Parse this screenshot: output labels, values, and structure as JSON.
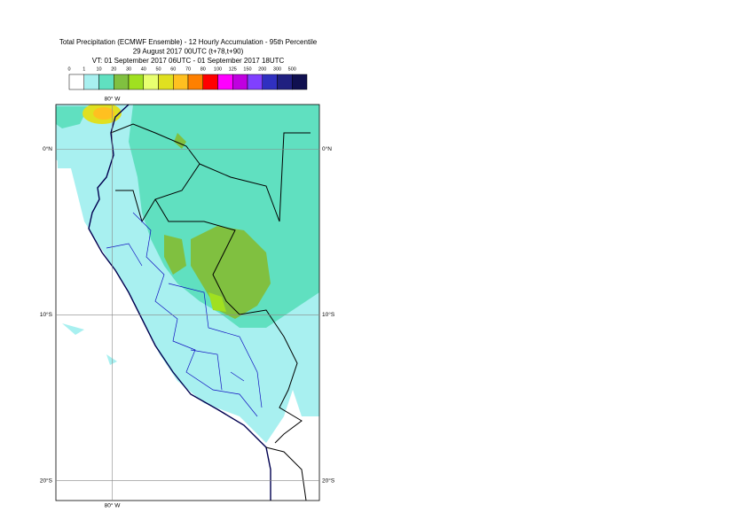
{
  "chart_data": {
    "type": "map",
    "title": "Total Precipitation (ECMWF Ensemble) - 12 Hourly Accumulation - 95th Percentile",
    "subtitle": "29 August 2017 00UTC (t+78,t+90)",
    "valid_time": "VT: 01 September 2017 06UTC - 01 September 2017 18UTC",
    "legend": {
      "boundaries": [
        0,
        1,
        10,
        20,
        30,
        40,
        50,
        60,
        70,
        80,
        100,
        125,
        150,
        200,
        300,
        500
      ],
      "colors": [
        "#ffffff",
        "#a8f0f0",
        "#60e0c0",
        "#80c040",
        "#a0e020",
        "#e8ff70",
        "#e0e020",
        "#ffc020",
        "#ff8000",
        "#ff0000",
        "#ff00ff",
        "#c000e0",
        "#8040ff",
        "#3030c0",
        "#202080",
        "#101050"
      ]
    },
    "xlim": [
      -83.4,
      -67.5
    ],
    "ylim": [
      -21.2,
      2.7
    ],
    "xticks": [
      {
        "value": -80,
        "label": "80° W"
      }
    ],
    "yticks": [
      {
        "value": 0,
        "label": "0°N"
      },
      {
        "value": -10,
        "label": "10°S"
      },
      {
        "value": -20,
        "label": "20°S"
      }
    ],
    "grid": true
  }
}
